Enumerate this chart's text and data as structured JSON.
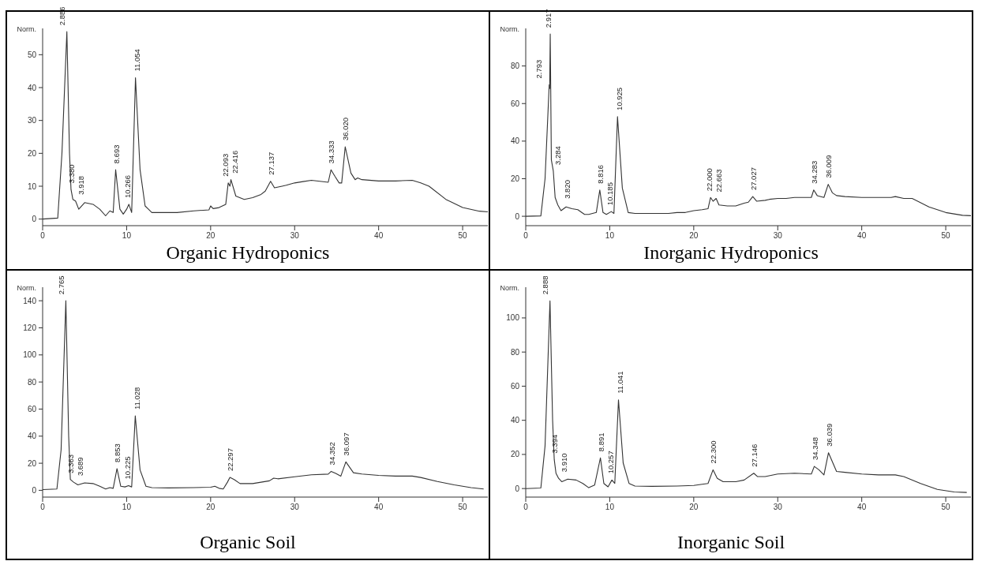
{
  "chart_data": [
    {
      "type": "line",
      "title": "Organic Hydroponics",
      "ylabel": "Norm.",
      "xlim": [
        0,
        53
      ],
      "xticks": [
        0,
        10,
        20,
        30,
        40,
        50
      ],
      "ylim": [
        -2,
        58
      ],
      "yticks": [
        0,
        10,
        20,
        30,
        40,
        50
      ],
      "series": [
        {
          "color": "#333333",
          "x": [
            0,
            1.8,
            2.3,
            2.886,
            3.2,
            3.38,
            3.6,
            3.918,
            4.3,
            5,
            6,
            6.8,
            7.5,
            8,
            8.4,
            8.693,
            9.2,
            9.6,
            10,
            10.266,
            10.6,
            11.054,
            11.6,
            12.2,
            12.6,
            13,
            14,
            16,
            18,
            19.8,
            20,
            20.3,
            21,
            21.8,
            22.093,
            22.3,
            22.416,
            23,
            24,
            25,
            26,
            26.5,
            27.137,
            27.6,
            28.5,
            29,
            30,
            31,
            32,
            33,
            34,
            34.333,
            34.8,
            35.3,
            35.6,
            36.02,
            36.7,
            37.2,
            37.5,
            38,
            40,
            42,
            44,
            45,
            46,
            48,
            50,
            52,
            53
          ],
          "values": [
            0,
            0.3,
            20,
            57,
            20,
            9,
            6,
            5.5,
            3,
            5,
            4.5,
            3,
            1,
            2.5,
            2,
            15,
            3,
            1.5,
            3,
            4.5,
            2,
            43,
            15,
            4,
            3,
            2,
            2,
            2,
            2.5,
            2.8,
            4,
            3.2,
            3.5,
            4.5,
            11,
            10,
            12,
            7,
            6,
            6.5,
            7.5,
            8.5,
            11.5,
            9.5,
            10,
            10.3,
            11,
            11.4,
            11.8,
            11.5,
            11.2,
            15,
            13,
            11,
            11,
            22,
            14,
            12,
            12.5,
            12,
            11.6,
            11.6,
            11.8,
            11,
            10,
            6,
            3.5,
            2.4,
            2.2
          ]
        }
      ],
      "annotations": [
        {
          "text": "2.886",
          "x": 2.886,
          "y": 57
        },
        {
          "text": "3.380",
          "x": 3.38,
          "y": 9
        },
        {
          "text": "3.918",
          "x": 3.918,
          "y": 5.5
        },
        {
          "text": "8.693",
          "x": 8.693,
          "y": 15
        },
        {
          "text": "10.266",
          "x": 10.266,
          "y": 4.5
        },
        {
          "text": "11.054",
          "x": 11.054,
          "y": 43
        },
        {
          "text": "22.093",
          "x": 22.093,
          "y": 11
        },
        {
          "text": "22.416",
          "x": 22.416,
          "y": 12
        },
        {
          "text": "27.137",
          "x": 27.137,
          "y": 11.5
        },
        {
          "text": "34.333",
          "x": 34.333,
          "y": 15
        },
        {
          "text": "36.020",
          "x": 36.02,
          "y": 22
        }
      ]
    },
    {
      "type": "line",
      "title": "Inorganic Hydroponics",
      "ylabel": "Norm.",
      "xlim": [
        0,
        53
      ],
      "xticks": [
        0,
        10,
        20,
        30,
        40,
        50
      ],
      "ylim": [
        -5,
        100
      ],
      "yticks": [
        0,
        20,
        40,
        60,
        80
      ],
      "series": [
        {
          "color": "#333333",
          "x": [
            0,
            1.8,
            2.3,
            2.793,
            2.85,
            2.917,
            3.05,
            3.284,
            3.5,
            3.82,
            4.2,
            4.8,
            5.5,
            6.2,
            7,
            7.5,
            8.4,
            8.816,
            9.2,
            9.6,
            10.185,
            10.5,
            10.925,
            11.5,
            12.2,
            13,
            15,
            17,
            18,
            19,
            20,
            21,
            21.7,
            22,
            22.3,
            22.663,
            23,
            24,
            25,
            26,
            26.5,
            27.027,
            27.5,
            28.5,
            29,
            30,
            31,
            32,
            34,
            34.283,
            34.7,
            35.5,
            36.009,
            36.5,
            37,
            38,
            40,
            42,
            43.5,
            44,
            45,
            46,
            48,
            50,
            52,
            53
          ],
          "values": [
            0,
            0.2,
            20,
            70,
            68,
            97,
            30,
            24,
            10,
            6,
            3,
            5,
            4,
            3.5,
            1,
            1,
            2,
            14,
            2,
            1,
            2.5,
            1.5,
            53,
            15,
            2,
            1.5,
            1.5,
            1.5,
            2,
            2,
            3,
            3.5,
            4,
            10,
            8,
            9.5,
            6,
            5.5,
            5.5,
            7,
            7.5,
            10.5,
            8,
            8.5,
            9,
            9.5,
            9.5,
            10,
            10,
            14,
            11,
            10,
            17,
            12.5,
            11,
            10.5,
            10,
            10,
            10,
            10.5,
            9.5,
            9.5,
            5,
            2,
            0.5,
            0.3
          ]
        }
      ],
      "annotations": [
        {
          "text": "2.793",
          "x": 2.793,
          "y": 70
        },
        {
          "text": "2.917",
          "x": 2.917,
          "y": 97
        },
        {
          "text": "3.284",
          "x": 3.284,
          "y": 24
        },
        {
          "text": "3.820",
          "x": 3.82,
          "y": 6
        },
        {
          "text": "8.816",
          "x": 8.816,
          "y": 14
        },
        {
          "text": "10.185",
          "x": 10.185,
          "y": 2.5
        },
        {
          "text": "10.925",
          "x": 10.925,
          "y": 53
        },
        {
          "text": "22.000",
          "x": 22,
          "y": 10
        },
        {
          "text": "22.663",
          "x": 22.663,
          "y": 9.5
        },
        {
          "text": "27.027",
          "x": 27.027,
          "y": 10.5
        },
        {
          "text": "34.283",
          "x": 34.283,
          "y": 14
        },
        {
          "text": "36.009",
          "x": 36.009,
          "y": 17
        }
      ]
    },
    {
      "type": "line",
      "title": "Organic Soil",
      "ylabel": "Norm.",
      "xlim": [
        0,
        53
      ],
      "xticks": [
        0,
        10,
        20,
        30,
        40,
        50
      ],
      "ylim": [
        -5,
        150
      ],
      "yticks": [
        0,
        20,
        40,
        60,
        80,
        100,
        120,
        140
      ],
      "series": [
        {
          "color": "#333333",
          "x": [
            0,
            1.7,
            2.2,
            2.765,
            3.1,
            3.3,
            3.689,
            4.2,
            5,
            6,
            6.8,
            7.5,
            8,
            8.4,
            8.853,
            9.3,
            9.8,
            10.225,
            10.6,
            11.028,
            11.6,
            12.3,
            13,
            15,
            18,
            20,
            20.5,
            21,
            21.5,
            22,
            22.297,
            22.8,
            23.5,
            25,
            26,
            27,
            27.5,
            28,
            30,
            32,
            34,
            34.352,
            34.9,
            35.5,
            36.097,
            37,
            38,
            40,
            42,
            44,
            45,
            47,
            49,
            51,
            52.5
          ],
          "values": [
            0.5,
            1,
            30,
            140,
            40,
            8,
            6,
            4,
            5.5,
            5,
            3,
            1,
            2,
            1.5,
            16,
            3,
            2.5,
            3.5,
            2.5,
            55,
            15,
            3,
            2,
            1.8,
            2,
            2.3,
            3,
            1.5,
            1,
            6,
            9.5,
            8,
            5,
            5,
            6,
            7,
            9,
            8.5,
            10,
            11.5,
            12,
            14,
            12.5,
            10.5,
            21,
            13,
            12,
            11,
            10.5,
            10.5,
            9.5,
            6.5,
            4,
            2,
            1
          ]
        }
      ],
      "annotations": [
        {
          "text": "2.765",
          "x": 2.765,
          "y": 140
        },
        {
          "text": "3.363",
          "x": 3.3,
          "y": 8
        },
        {
          "text": "3.689",
          "x": 3.689,
          "y": 6
        },
        {
          "text": "8.853",
          "x": 8.853,
          "y": 16
        },
        {
          "text": "10.225",
          "x": 10.225,
          "y": 3.5
        },
        {
          "text": "11.028",
          "x": 11.028,
          "y": 55
        },
        {
          "text": "22.297",
          "x": 22.297,
          "y": 9.5
        },
        {
          "text": "34.352",
          "x": 34.352,
          "y": 14
        },
        {
          "text": "36.097",
          "x": 36.097,
          "y": 21
        }
      ]
    },
    {
      "type": "line",
      "title": "Inorganic Soil",
      "ylabel": "Norm.",
      "xlim": [
        0,
        53
      ],
      "xticks": [
        0,
        10,
        20,
        30,
        40,
        50
      ],
      "ylim": [
        -5,
        118
      ],
      "yticks": [
        0,
        20,
        40,
        60,
        80,
        100
      ],
      "series": [
        {
          "color": "#333333",
          "x": [
            0,
            1.8,
            2.3,
            2.888,
            3.2,
            3.394,
            3.6,
            3.91,
            4.3,
            5,
            6,
            6.8,
            7.5,
            8.2,
            8.891,
            9.3,
            9.8,
            10.257,
            10.6,
            11.041,
            11.6,
            12.3,
            13,
            15,
            18,
            20,
            21,
            21.7,
            22.3,
            22.8,
            23.5,
            25,
            26,
            27.146,
            27.6,
            28.5,
            30,
            32,
            34,
            34.348,
            34.9,
            35.5,
            36.039,
            37,
            38,
            40,
            42,
            44,
            45,
            47,
            49,
            51,
            52.5
          ],
          "values": [
            0,
            0.3,
            25,
            110,
            40,
            17,
            9,
            6,
            4,
            5.5,
            5,
            3,
            0.5,
            2,
            18,
            3,
            1,
            5,
            3,
            52,
            15,
            3,
            1.5,
            1.3,
            1.5,
            1.8,
            2.5,
            3,
            11,
            6,
            4,
            4,
            5,
            9,
            7,
            7,
            8.5,
            9,
            8.5,
            13,
            11,
            8,
            21,
            10,
            9.5,
            8.5,
            8,
            8,
            7,
            3,
            -0.5,
            -2,
            -2.3
          ]
        }
      ],
      "annotations": [
        {
          "text": "2.888",
          "x": 2.888,
          "y": 110
        },
        {
          "text": "3.394",
          "x": 3.394,
          "y": 17
        },
        {
          "text": "3.910",
          "x": 3.91,
          "y": 6
        },
        {
          "text": "8.891",
          "x": 8.891,
          "y": 18
        },
        {
          "text": "10.257",
          "x": 10.257,
          "y": 5
        },
        {
          "text": "11.041",
          "x": 11.041,
          "y": 52
        },
        {
          "text": "22.300",
          "x": 22.3,
          "y": 11
        },
        {
          "text": "27.146",
          "x": 27.146,
          "y": 9
        },
        {
          "text": "34.348",
          "x": 34.348,
          "y": 13
        },
        {
          "text": "36.039",
          "x": 36.039,
          "y": 21
        }
      ]
    }
  ]
}
